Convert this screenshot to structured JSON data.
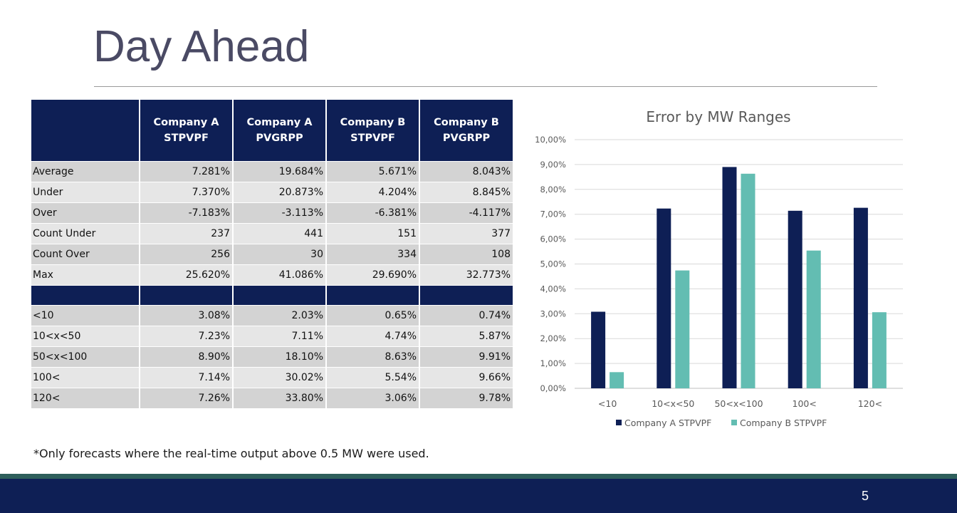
{
  "slide": {
    "title": "Day Ahead",
    "footnote": "*Only forecasts where the real-time output above 0.5 MW were used.",
    "page_number": "5"
  },
  "table": {
    "headers": [
      "",
      "Company A STPVPF",
      "Company A PVGRPP",
      "Company B STPVPF",
      "Company B PVGRPP"
    ],
    "rows_top": [
      [
        "Average",
        "7.281%",
        "19.684%",
        "5.671%",
        "8.043%"
      ],
      [
        "Under",
        "7.370%",
        "20.873%",
        "4.204%",
        "8.845%"
      ],
      [
        "Over",
        "-7.183%",
        "-3.113%",
        "-6.381%",
        "-4.117%"
      ],
      [
        "Count Under",
        "237",
        "441",
        "151",
        "377"
      ],
      [
        "Count Over",
        "256",
        "30",
        "334",
        "108"
      ],
      [
        "Max",
        "25.620%",
        "41.086%",
        "29.690%",
        "32.773%"
      ]
    ],
    "rows_bottom": [
      [
        "<10",
        "3.08%",
        "2.03%",
        "0.65%",
        "0.74%"
      ],
      [
        "10<x<50",
        "7.23%",
        "7.11%",
        "4.74%",
        "5.87%"
      ],
      [
        "50<x<100",
        "8.90%",
        "18.10%",
        "8.63%",
        "9.91%"
      ],
      [
        "100<",
        "7.14%",
        "30.02%",
        "5.54%",
        "9.66%"
      ],
      [
        "120<",
        "7.26%",
        "33.80%",
        "3.06%",
        "9.78%"
      ]
    ]
  },
  "chart_data": {
    "type": "bar",
    "title": "Error by MW Ranges",
    "categories": [
      "<10",
      "10<x<50",
      "50<x<100",
      "100<",
      "120<"
    ],
    "series": [
      {
        "name": "Company A STPVPF",
        "color": "#0e1f55",
        "values": [
          3.08,
          7.23,
          8.9,
          7.14,
          7.26
        ]
      },
      {
        "name": "Company B STPVPF",
        "color": "#63bdb2",
        "values": [
          0.65,
          4.74,
          8.63,
          5.54,
          3.06
        ]
      }
    ],
    "ylim": [
      0,
      10
    ],
    "yticks": [
      "0,00%",
      "1,00%",
      "2,00%",
      "3,00%",
      "4,00%",
      "5,00%",
      "6,00%",
      "7,00%",
      "8,00%",
      "9,00%",
      "10,00%"
    ],
    "grid": true,
    "legend": "bottom"
  }
}
